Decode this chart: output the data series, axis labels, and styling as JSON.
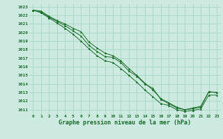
{
  "xlabel": "Graphe pression niveau de la mer (hPa)",
  "xlim": [
    -0.5,
    23.5
  ],
  "ylim": [
    1010.5,
    1023.3
  ],
  "xticks": [
    0,
    1,
    2,
    3,
    4,
    5,
    6,
    7,
    8,
    9,
    10,
    11,
    12,
    13,
    14,
    15,
    16,
    17,
    18,
    19,
    20,
    21,
    22,
    23
  ],
  "yticks": [
    1011,
    1012,
    1013,
    1014,
    1015,
    1016,
    1017,
    1018,
    1019,
    1020,
    1021,
    1022,
    1023
  ],
  "bg_color": "#cceae0",
  "grid_color": "#aad4c4",
  "line_color": "#1a6b2a",
  "series1": [
    1022.6,
    1022.4,
    1021.8,
    1021.3,
    1020.8,
    1020.2,
    1019.6,
    1018.5,
    1017.8,
    1017.2,
    1017.1,
    1016.5,
    1015.5,
    1014.9,
    1014.0,
    1013.5,
    1012.2,
    1011.7,
    1011.2,
    1011.0,
    1011.1,
    1011.3,
    1013.1,
    1013.0
  ],
  "series2": [
    1022.6,
    1022.3,
    1021.7,
    1021.1,
    1020.5,
    1019.8,
    1019.0,
    1018.1,
    1017.3,
    1016.7,
    1016.5,
    1015.8,
    1015.0,
    1014.2,
    1013.3,
    1012.5,
    1011.7,
    1011.5,
    1011.0,
    1010.8,
    1010.9,
    1011.1,
    1012.7,
    1012.7
  ],
  "series3": [
    1022.6,
    1022.5,
    1021.9,
    1021.4,
    1021.0,
    1020.5,
    1020.1,
    1018.9,
    1018.2,
    1017.6,
    1017.3,
    1016.7,
    1015.8,
    1015.0,
    1014.1,
    1013.3,
    1012.3,
    1011.8,
    1011.3,
    1011.0,
    1011.2,
    1011.4,
    1013.1,
    1013.0
  ]
}
